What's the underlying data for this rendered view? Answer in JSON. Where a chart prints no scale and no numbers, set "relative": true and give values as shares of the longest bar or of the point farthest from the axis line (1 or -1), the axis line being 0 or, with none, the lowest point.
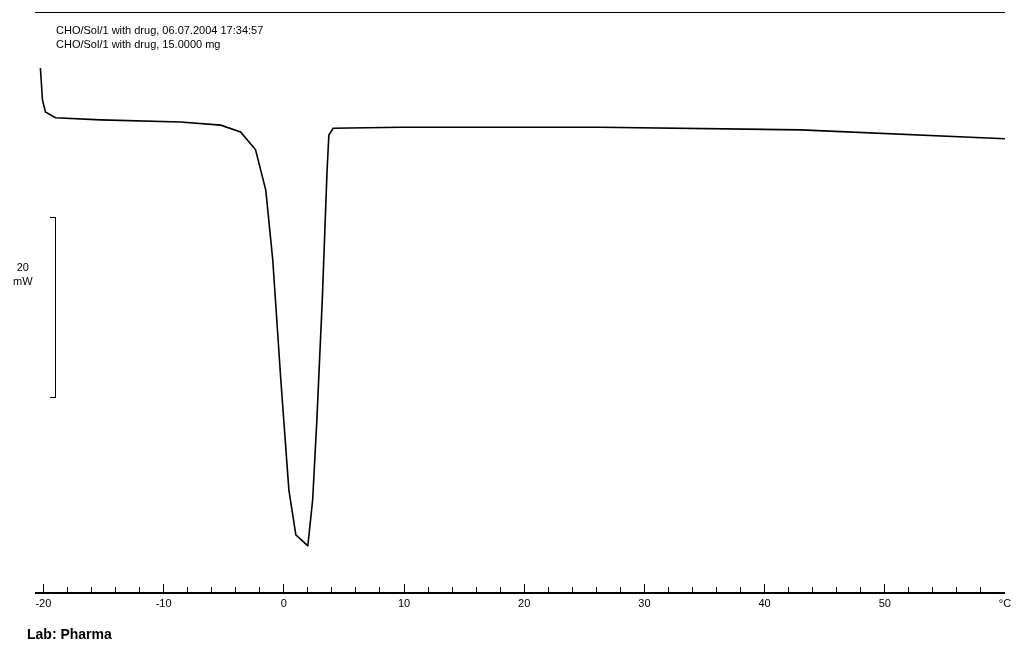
{
  "chart_data": {
    "type": "line",
    "relative": true,
    "x": [
      -20.25,
      -20.08,
      -19.83,
      -19.0,
      -15.25,
      -8.6,
      -5.25,
      -3.6,
      -2.35,
      -1.5,
      -0.92,
      -0.25,
      0.42,
      1.0,
      2.0,
      2.4,
      2.75,
      3.2,
      3.6,
      3.75,
      4.1,
      9.7,
      26.3,
      43.0,
      60.0
    ],
    "series": [
      {
        "color": "#000000",
        "values": [
          1.0,
          0.939,
          0.916,
          0.905,
          0.901,
          0.897,
          0.891,
          0.878,
          0.844,
          0.767,
          0.634,
          0.405,
          0.195,
          0.109,
          0.088,
          0.176,
          0.328,
          0.557,
          0.805,
          0.872,
          0.885,
          0.887,
          0.887,
          0.882,
          0.865
        ]
      }
    ],
    "xlim": [
      -20.7,
      60
    ],
    "xticks": [
      -20,
      -10,
      0,
      10,
      20,
      30,
      40,
      50,
      {
        "value": 60,
        "label": "°C"
      }
    ],
    "annotations": [
      "CHO/Sol/1 with drug, 06.07.2004 17:34:57",
      "CHO/Sol/1 with drug, 15.0000 mg",
      "20 mW",
      "Lab: Pharma"
    ],
    "grid": false,
    "marker": "none",
    "line_style": "solid"
  }
}
